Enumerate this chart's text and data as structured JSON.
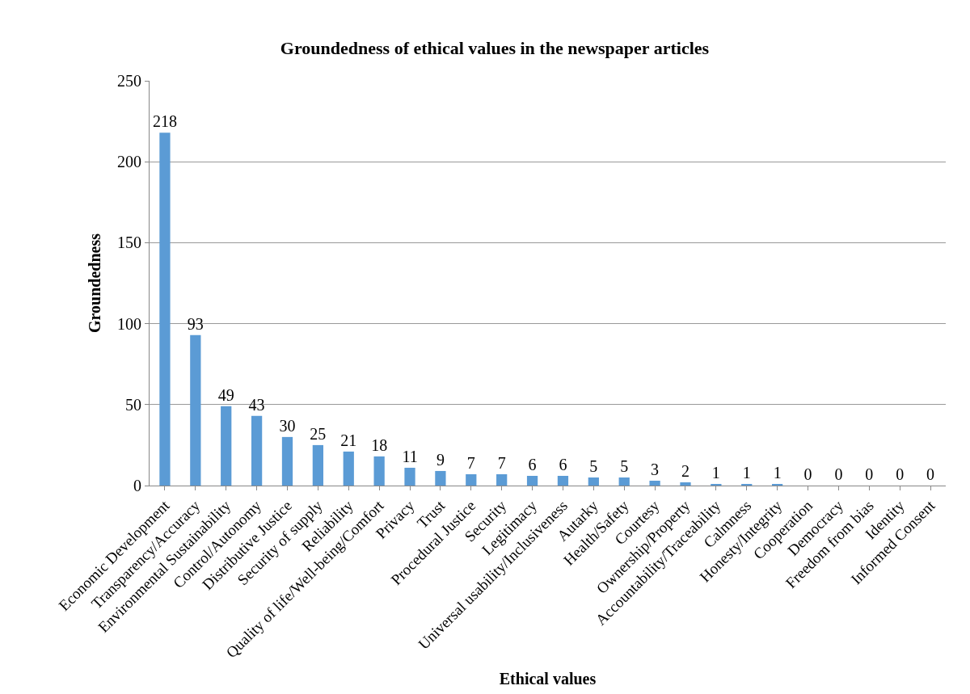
{
  "chart_data": {
    "type": "bar",
    "title": "Groundedness of ethical values in the newspaper articles",
    "xlabel": "Ethical values",
    "ylabel": "Groundedness",
    "categories": [
      "Economic Development",
      "Transparency/Accuracy",
      "Environmental Sustainability",
      "Control/Autonomy",
      "Distributive Justice",
      "Security of supply",
      "Reliability",
      "Quality of life/Well-being/Comfort",
      "Privacy",
      "Trust",
      "Procedural Justice",
      "Security",
      "Legitimacy",
      "Universal usability/Inclusiveness",
      "Autarky",
      "Health/Safety",
      "Courtesy",
      "Ownership/Property",
      "Accountability/Traceability",
      "Calmness",
      "Honesty/Integrity",
      "Cooperation",
      "Democracy",
      "Freedom from bias",
      "Identity",
      "Informed Consent"
    ],
    "values": [
      218,
      93,
      49,
      43,
      30,
      25,
      21,
      18,
      11,
      9,
      7,
      7,
      6,
      6,
      5,
      5,
      3,
      2,
      1,
      1,
      1,
      0,
      0,
      0,
      0,
      0
    ],
    "color": "#5b9bd5",
    "ylim": [
      0,
      250
    ],
    "yticks": [
      0,
      50,
      100,
      150,
      200,
      250
    ],
    "grid": "y",
    "data_labels": true,
    "legend": false
  }
}
